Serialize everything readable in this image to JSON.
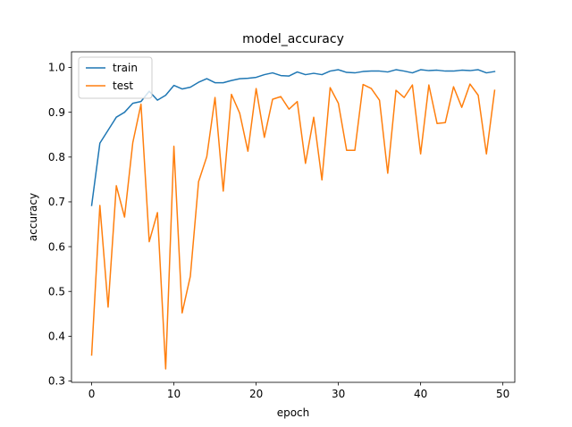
{
  "chart_data": {
    "type": "line",
    "title": "model_accuracy",
    "xlabel": "epoch",
    "ylabel": "accuracy",
    "xlim": [
      -2.45,
      51.45
    ],
    "ylim": [
      0.297,
      1.035
    ],
    "xticks": [
      0,
      10,
      20,
      30,
      40,
      50
    ],
    "yticks": [
      0.3,
      0.4,
      0.5,
      0.6,
      0.7,
      0.8,
      0.9,
      1.0
    ],
    "legend_position": "upper-left",
    "grid": false,
    "series": [
      {
        "name": "train",
        "color": "#1f77b4",
        "x": [
          0,
          1,
          2,
          3,
          4,
          5,
          6,
          7,
          8,
          9,
          10,
          11,
          12,
          13,
          14,
          15,
          16,
          17,
          18,
          19,
          20,
          21,
          22,
          23,
          24,
          25,
          26,
          27,
          28,
          29,
          30,
          31,
          32,
          33,
          34,
          35,
          36,
          37,
          38,
          39,
          40,
          41,
          42,
          43,
          44,
          45,
          46,
          47,
          48,
          49
        ],
        "values": [
          0.692,
          0.831,
          0.86,
          0.889,
          0.9,
          0.92,
          0.924,
          0.947,
          0.927,
          0.938,
          0.96,
          0.952,
          0.956,
          0.967,
          0.975,
          0.966,
          0.966,
          0.971,
          0.975,
          0.976,
          0.978,
          0.984,
          0.988,
          0.982,
          0.981,
          0.99,
          0.984,
          0.987,
          0.984,
          0.992,
          0.995,
          0.989,
          0.988,
          0.991,
          0.992,
          0.992,
          0.99,
          0.995,
          0.992,
          0.988,
          0.995,
          0.993,
          0.994,
          0.992,
          0.992,
          0.994,
          0.993,
          0.995,
          0.988,
          0.991
        ]
      },
      {
        "name": "test",
        "color": "#ff7f0e",
        "x": [
          0,
          1,
          2,
          3,
          4,
          5,
          6,
          7,
          8,
          9,
          10,
          11,
          12,
          13,
          14,
          15,
          16,
          17,
          18,
          19,
          20,
          21,
          22,
          23,
          24,
          25,
          26,
          27,
          28,
          29,
          30,
          31,
          32,
          33,
          34,
          35,
          36,
          37,
          38,
          39,
          40,
          41,
          42,
          43,
          44,
          45,
          46,
          47,
          48,
          49
        ],
        "values": [
          0.358,
          0.692,
          0.465,
          0.736,
          0.666,
          0.832,
          0.918,
          0.611,
          0.676,
          0.327,
          0.824,
          0.452,
          0.534,
          0.745,
          0.801,
          0.933,
          0.724,
          0.94,
          0.898,
          0.813,
          0.953,
          0.844,
          0.929,
          0.935,
          0.907,
          0.924,
          0.786,
          0.889,
          0.749,
          0.955,
          0.92,
          0.815,
          0.815,
          0.962,
          0.953,
          0.927,
          0.764,
          0.949,
          0.933,
          0.961,
          0.807,
          0.961,
          0.875,
          0.877,
          0.957,
          0.911,
          0.963,
          0.938,
          0.807,
          0.949
        ]
      }
    ]
  }
}
